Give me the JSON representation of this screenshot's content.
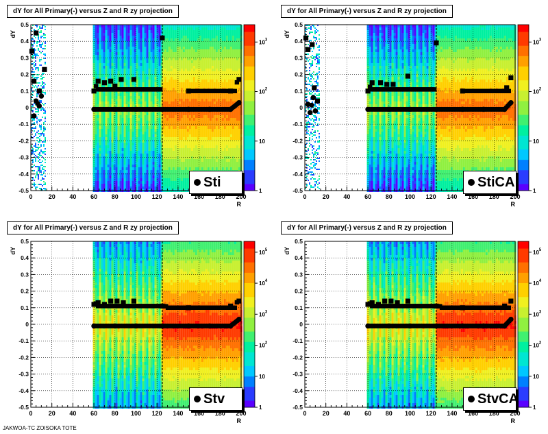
{
  "chart_data": [
    {
      "type": "heatmap",
      "title": "dY for All Primary(-) versus Z and R zy projection",
      "xlabel": "R",
      "ylabel": "dY",
      "xlim": [
        0,
        200
      ],
      "ylim": [
        -0.5,
        0.5
      ],
      "x_ticks": [
        "0",
        "20",
        "40",
        "60",
        "80",
        "100",
        "120",
        "140",
        "160",
        "180",
        "200"
      ],
      "y_ticks": [
        "-0.5",
        "-0.4",
        "-0.3",
        "-0.2",
        "-0.1",
        "0",
        "0.1",
        "0.2",
        "0.3",
        "0.4",
        "0.5"
      ],
      "zscale": "log",
      "z_ticks": [
        "1",
        "10",
        "10^2",
        "10^3"
      ],
      "legend": "Sti",
      "grid": true,
      "mean_markers": [
        [
          3,
          -0.05
        ],
        [
          5,
          0.04
        ],
        [
          8,
          0.01
        ],
        [
          10,
          0.07
        ],
        [
          60,
          -0.01
        ],
        [
          80,
          -0.01
        ],
        [
          100,
          -0.01
        ],
        [
          125,
          -0.01
        ],
        [
          150,
          -0.01
        ],
        [
          170,
          -0.01
        ],
        [
          190,
          -0.01
        ],
        [
          198,
          0.03
        ]
      ],
      "rms_markers": [
        [
          1,
          0.34
        ],
        [
          3,
          0.16
        ],
        [
          5,
          0.45
        ],
        [
          8,
          0.1
        ],
        [
          13,
          0.23
        ],
        [
          60,
          0.1
        ],
        [
          64,
          0.16
        ],
        [
          70,
          0.15
        ],
        [
          76,
          0.16
        ],
        [
          80,
          0.13
        ],
        [
          86,
          0.17
        ],
        [
          98,
          0.17
        ],
        [
          125,
          0.42
        ],
        [
          150,
          0.1
        ],
        [
          190,
          0.1
        ],
        [
          198,
          0.17
        ]
      ],
      "regions": [
        {
          "x": [
            0,
            14
          ],
          "level": "sparse"
        },
        {
          "x": [
            59,
            125
          ],
          "level": "striped"
        },
        {
          "x": [
            125,
            200
          ],
          "level": "dense"
        }
      ]
    },
    {
      "type": "heatmap",
      "title": "dY for All Primary(-) versus Z and R zy projection",
      "xlabel": "R",
      "ylabel": "dY",
      "xlim": [
        0,
        200
      ],
      "ylim": [
        -0.5,
        0.5
      ],
      "x_ticks": [
        "0",
        "20",
        "40",
        "60",
        "80",
        "100",
        "120",
        "140",
        "160",
        "180",
        "200"
      ],
      "y_ticks": [
        "-0.5",
        "-0.4",
        "-0.3",
        "-0.2",
        "-0.1",
        "0",
        "0.1",
        "0.2",
        "0.3",
        "0.4",
        "0.5"
      ],
      "zscale": "log",
      "z_ticks": [
        "1",
        "10",
        "10^2",
        "10^3"
      ],
      "legend": "StiCA",
      "grid": true,
      "mean_markers": [
        [
          3,
          0.02
        ],
        [
          5,
          -0.03
        ],
        [
          8,
          0.06
        ],
        [
          10,
          -0.02
        ],
        [
          60,
          -0.01
        ],
        [
          80,
          -0.01
        ],
        [
          100,
          -0.01
        ],
        [
          125,
          -0.01
        ],
        [
          150,
          -0.01
        ],
        [
          170,
          -0.01
        ],
        [
          190,
          -0.01
        ],
        [
          196,
          0.03
        ]
      ],
      "rms_markers": [
        [
          1,
          0.42
        ],
        [
          3,
          0.35
        ],
        [
          7,
          0.38
        ],
        [
          9,
          0.12
        ],
        [
          12,
          0.04
        ],
        [
          60,
          0.1
        ],
        [
          64,
          0.15
        ],
        [
          72,
          0.15
        ],
        [
          78,
          0.14
        ],
        [
          84,
          0.14
        ],
        [
          98,
          0.19
        ],
        [
          125,
          0.39
        ],
        [
          150,
          0.1
        ],
        [
          192,
          0.12
        ],
        [
          196,
          0.18
        ]
      ],
      "regions": [
        {
          "x": [
            0,
            14
          ],
          "level": "sparse"
        },
        {
          "x": [
            59,
            125
          ],
          "level": "striped"
        },
        {
          "x": [
            125,
            200
          ],
          "level": "dense"
        }
      ]
    },
    {
      "type": "heatmap",
      "title": "dY for All Primary(-) versus Z and R zy projection",
      "xlabel": "R",
      "ylabel": "dY",
      "xlim": [
        0,
        200
      ],
      "ylim": [
        -0.5,
        0.5
      ],
      "x_ticks": [
        "0",
        "20",
        "40",
        "60",
        "80",
        "100",
        "120",
        "140",
        "160",
        "180",
        "200"
      ],
      "y_ticks": [
        "-0.5",
        "-0.4",
        "-0.3",
        "-0.2",
        "-0.1",
        "0",
        "0.1",
        "0.2",
        "0.3",
        "0.4",
        "0.5"
      ],
      "zscale": "log",
      "z_ticks": [
        "1",
        "10",
        "10^2",
        "10^3",
        "10^4",
        "10^5"
      ],
      "legend": "Stv",
      "grid": true,
      "mean_markers": [
        [
          60,
          -0.01
        ],
        [
          80,
          -0.01
        ],
        [
          100,
          -0.01
        ],
        [
          125,
          -0.01
        ],
        [
          150,
          -0.01
        ],
        [
          170,
          -0.01
        ],
        [
          190,
          -0.01
        ],
        [
          198,
          0.03
        ]
      ],
      "rms_markers": [
        [
          60,
          0.12
        ],
        [
          64,
          0.13
        ],
        [
          70,
          0.12
        ],
        [
          76,
          0.14
        ],
        [
          82,
          0.14
        ],
        [
          88,
          0.13
        ],
        [
          98,
          0.14
        ],
        [
          125,
          0.11
        ],
        [
          150,
          0.1
        ],
        [
          190,
          0.11
        ],
        [
          198,
          0.14
        ]
      ],
      "regions": [
        {
          "x": [
            59,
            125
          ],
          "level": "striped"
        },
        {
          "x": [
            125,
            200
          ],
          "level": "dense"
        }
      ]
    },
    {
      "type": "heatmap",
      "title": "dY for All Primary(-) versus Z and R zy projection",
      "xlabel": "R",
      "ylabel": "dY",
      "xlim": [
        0,
        200
      ],
      "ylim": [
        -0.5,
        0.5
      ],
      "x_ticks": [
        "0",
        "20",
        "40",
        "60",
        "80",
        "100",
        "120",
        "140",
        "160",
        "180",
        "200"
      ],
      "y_ticks": [
        "-0.5",
        "-0.4",
        "-0.3",
        "-0.2",
        "-0.1",
        "0",
        "0.1",
        "0.2",
        "0.3",
        "0.4",
        "0.5"
      ],
      "zscale": "log",
      "z_ticks": [
        "1",
        "10",
        "10^2",
        "10^3",
        "10^4",
        "10^5"
      ],
      "legend": "StvCA",
      "grid": true,
      "mean_markers": [
        [
          60,
          -0.01
        ],
        [
          80,
          -0.01
        ],
        [
          100,
          -0.01
        ],
        [
          125,
          -0.01
        ],
        [
          150,
          -0.01
        ],
        [
          170,
          -0.01
        ],
        [
          190,
          -0.01
        ],
        [
          196,
          0.03
        ]
      ],
      "rms_markers": [
        [
          60,
          0.12
        ],
        [
          64,
          0.13
        ],
        [
          70,
          0.12
        ],
        [
          76,
          0.14
        ],
        [
          82,
          0.14
        ],
        [
          88,
          0.13
        ],
        [
          98,
          0.14
        ],
        [
          125,
          0.11
        ],
        [
          150,
          0.1
        ],
        [
          190,
          0.11
        ],
        [
          196,
          0.14
        ]
      ],
      "regions": [
        {
          "x": [
            59,
            125
          ],
          "level": "striped"
        },
        {
          "x": [
            125,
            200
          ],
          "level": "dense"
        }
      ]
    }
  ],
  "footer_text": "JAKWOA-TC ZOISOKA TOTE"
}
